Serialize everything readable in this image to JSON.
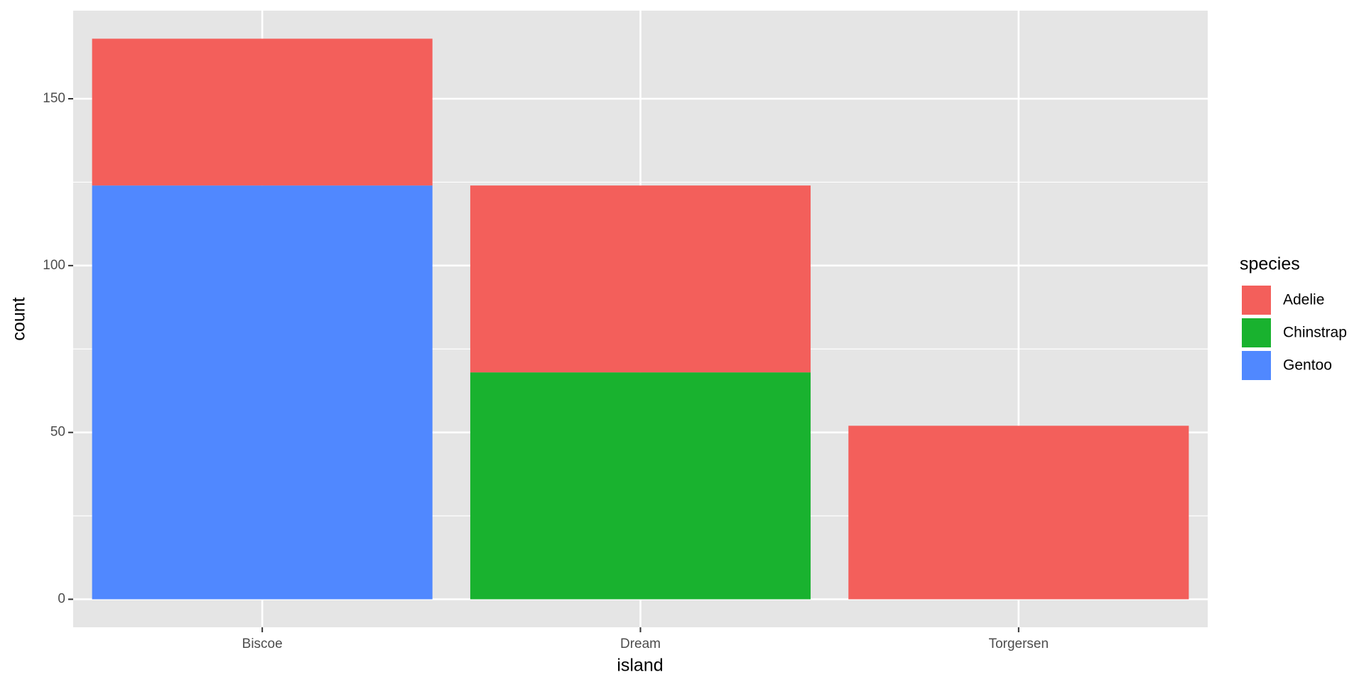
{
  "chart_data": {
    "type": "stacked_bar",
    "x_label": "island",
    "y_label": "count",
    "legend_title": "species",
    "categories": [
      "Biscoe",
      "Dream",
      "Torgersen"
    ],
    "series": [
      {
        "name": "Adelie",
        "color": "#F35F5B",
        "values": [
          44,
          56,
          52
        ]
      },
      {
        "name": "Chinstrap",
        "color": "#19B22F",
        "values": [
          null,
          68,
          null
        ]
      },
      {
        "name": "Gentoo",
        "color": "#5088FF",
        "values": [
          124,
          null,
          null
        ]
      }
    ],
    "ylim": [
      -8.4,
      176.4
    ],
    "yticks": [
      0,
      50,
      100,
      150
    ],
    "y_minor_ticks": [
      25,
      75,
      125
    ],
    "grid": true,
    "legend_position": "right"
  }
}
